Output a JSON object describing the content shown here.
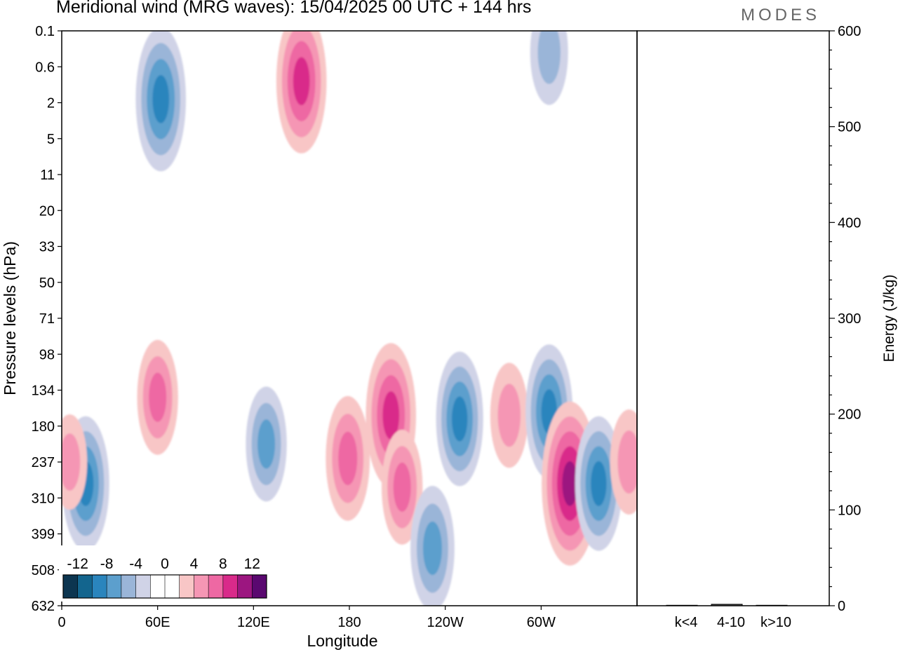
{
  "title": "Meridional wind (MRG waves):  15/04/2025  00 UTC  + 144 hrs",
  "logo": "MODES",
  "chart_data": [
    {
      "type": "heatmap",
      "subtype": "filled-contour",
      "title": "Meridional wind (MRG waves):  15/04/2025  00 UTC  + 144 hrs",
      "xlabel": "Longitude",
      "ylabel": "Pressure levels (hPa)",
      "x_ticks": [
        "0",
        "60E",
        "120E",
        "180",
        "120W",
        "60W"
      ],
      "x_tick_values": [
        0,
        60,
        120,
        180,
        240,
        300
      ],
      "xlim": [
        0,
        360
      ],
      "y_ticks": [
        "0.1",
        "0.6",
        "2",
        "5",
        "11",
        "20",
        "33",
        "50",
        "71",
        "98",
        "134",
        "180",
        "237",
        "310",
        "399",
        "508",
        "632"
      ],
      "colorbar": {
        "labels": [
          "-12",
          "-8",
          "-4",
          "0",
          "4",
          "8",
          "12"
        ],
        "levels": [
          -14,
          -12,
          -10,
          -8,
          -6,
          -4,
          -2,
          0,
          2,
          4,
          6,
          8,
          10,
          12,
          14
        ],
        "colors": [
          "#0c3550",
          "#13658e",
          "#2a85bd",
          "#5c9fcd",
          "#9ab5d8",
          "#d0d3e7",
          "#ffffff",
          "#ffffff",
          "#f8c6c6",
          "#f596b4",
          "#ee68a3",
          "#d92a8a",
          "#9c1680",
          "#5a0870"
        ]
      },
      "contour_features": [
        {
          "lon": 62,
          "level_index": 1.9,
          "value": -9
        },
        {
          "lon": 150,
          "level_index": 1.4,
          "value": 9
        },
        {
          "lon": 305,
          "level_index": 0.6,
          "value": -5
        },
        {
          "lon": 15,
          "level_index": 12.6,
          "value": -8
        },
        {
          "lon": 60,
          "level_index": 10.2,
          "value": 6
        },
        {
          "lon": 128,
          "level_index": 11.5,
          "value": -6
        },
        {
          "lon": 179,
          "level_index": 11.9,
          "value": 7
        },
        {
          "lon": 206,
          "level_index": 10.7,
          "value": 9
        },
        {
          "lon": 213,
          "level_index": 12.7,
          "value": 6
        },
        {
          "lon": 249,
          "level_index": 10.8,
          "value": -8
        },
        {
          "lon": 280,
          "level_index": 10.7,
          "value": 5
        },
        {
          "lon": 305,
          "level_index": 10.6,
          "value": -8
        },
        {
          "lon": 318,
          "level_index": 12.6,
          "value": 11
        },
        {
          "lon": 336,
          "level_index": 12.6,
          "value": -8
        },
        {
          "lon": 355,
          "level_index": 12.0,
          "value": 5
        },
        {
          "lon": 232,
          "level_index": 14.4,
          "value": -7
        },
        {
          "lon": 5,
          "level_index": 12.0,
          "value": 4
        }
      ]
    },
    {
      "type": "bar",
      "categories": [
        "k<4",
        "4-10",
        "k>10"
      ],
      "values": [
        0.5,
        1.5,
        0.5
      ],
      "ylabel": "Energy (J/kg)",
      "ylim": [
        0,
        600
      ],
      "y_ticks": [
        0,
        100,
        200,
        300,
        400,
        500,
        600
      ]
    }
  ]
}
